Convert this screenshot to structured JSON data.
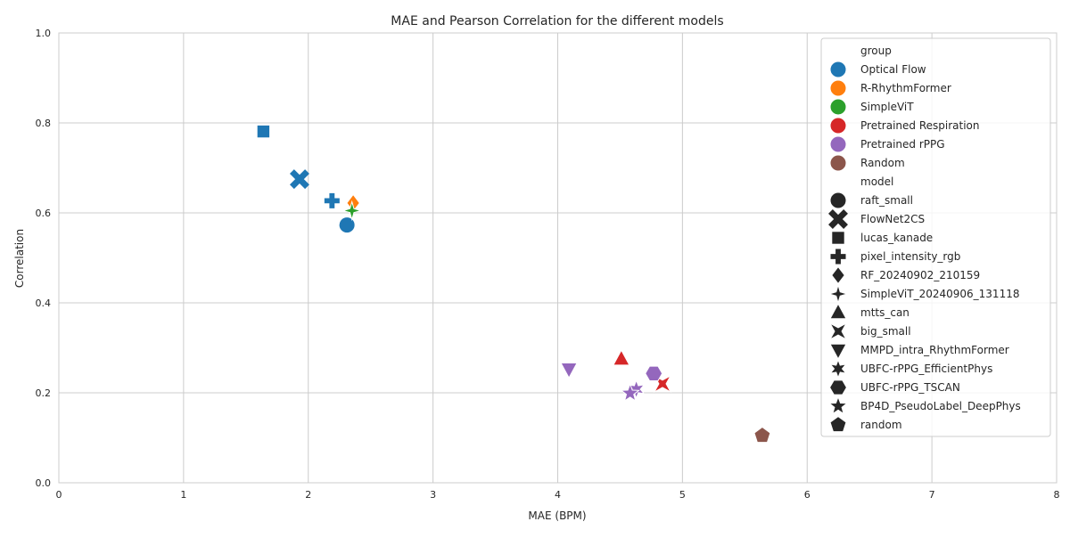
{
  "chart_data": {
    "type": "scatter",
    "title": "MAE and Pearson Correlation for the different models",
    "xlabel": "MAE (BPM)",
    "ylabel": "Correlation",
    "xlim": [
      0,
      8
    ],
    "ylim": [
      0,
      1
    ],
    "xticks": [
      "0",
      "1",
      "2",
      "3",
      "4",
      "5",
      "6",
      "7",
      "8"
    ],
    "yticks": [
      "0.0",
      "0.2",
      "0.4",
      "0.6",
      "0.8",
      "1.0"
    ],
    "grid": true,
    "legend_position": "right",
    "legend": {
      "group_title": "group",
      "groups": [
        {
          "name": "Optical Flow",
          "color": "#1f77b4"
        },
        {
          "name": "R-RhythmFormer",
          "color": "#ff7f0e"
        },
        {
          "name": "SimpleViT",
          "color": "#2ca02c"
        },
        {
          "name": "Pretrained Respiration",
          "color": "#d62728"
        },
        {
          "name": "Pretrained rPPG",
          "color": "#9467bd"
        },
        {
          "name": "Random",
          "color": "#8c564b"
        }
      ],
      "model_title": "model",
      "models": [
        {
          "name": "raft_small",
          "marker": "circle"
        },
        {
          "name": "FlowNet2CS",
          "marker": "x"
        },
        {
          "name": "lucas_kanade",
          "marker": "square"
        },
        {
          "name": "pixel_intensity_rgb",
          "marker": "plus"
        },
        {
          "name": "RF_20240902_210159",
          "marker": "diamond"
        },
        {
          "name": "SimpleViT_20240906_131118",
          "marker": "star4"
        },
        {
          "name": "mtts_can",
          "marker": "triangle-up"
        },
        {
          "name": "big_small",
          "marker": "bowtie"
        },
        {
          "name": "MMPD_intra_RhythmFormer",
          "marker": "triangle-down"
        },
        {
          "name": "UBFC-rPPG_EfficientPhys",
          "marker": "star6"
        },
        {
          "name": "UBFC-rPPG_TSCAN",
          "marker": "hexagon"
        },
        {
          "name": "BP4D_PseudoLabel_DeepPhys",
          "marker": "star5"
        },
        {
          "name": "random",
          "marker": "pentagon"
        }
      ]
    },
    "points": [
      {
        "model": "raft_small",
        "group": "Optical Flow",
        "x": 2.31,
        "y": 0.573
      },
      {
        "model": "FlowNet2CS",
        "group": "Optical Flow",
        "x": 1.93,
        "y": 0.675
      },
      {
        "model": "lucas_kanade",
        "group": "Optical Flow",
        "x": 1.64,
        "y": 0.781
      },
      {
        "model": "pixel_intensity_rgb",
        "group": "Optical Flow",
        "x": 2.19,
        "y": 0.627
      },
      {
        "model": "RF_20240902_210159",
        "group": "R-RhythmFormer",
        "x": 2.36,
        "y": 0.622
      },
      {
        "model": "SimpleViT_20240906_131118",
        "group": "SimpleViT",
        "x": 2.35,
        "y": 0.605
      },
      {
        "model": "mtts_can",
        "group": "Pretrained Respiration",
        "x": 4.51,
        "y": 0.275
      },
      {
        "model": "big_small",
        "group": "Pretrained Respiration",
        "x": 4.84,
        "y": 0.22
      },
      {
        "model": "MMPD_intra_RhythmFormer",
        "group": "Pretrained rPPG",
        "x": 4.09,
        "y": 0.253
      },
      {
        "model": "UBFC-rPPG_EfficientPhys",
        "group": "Pretrained rPPG",
        "x": 4.63,
        "y": 0.208
      },
      {
        "model": "UBFC-rPPG_TSCAN",
        "group": "Pretrained rPPG",
        "x": 4.77,
        "y": 0.243
      },
      {
        "model": "BP4D_PseudoLabel_DeepPhys",
        "group": "Pretrained rPPG",
        "x": 4.58,
        "y": 0.199
      },
      {
        "model": "random",
        "group": "Random",
        "x": 5.64,
        "y": 0.105
      }
    ]
  }
}
